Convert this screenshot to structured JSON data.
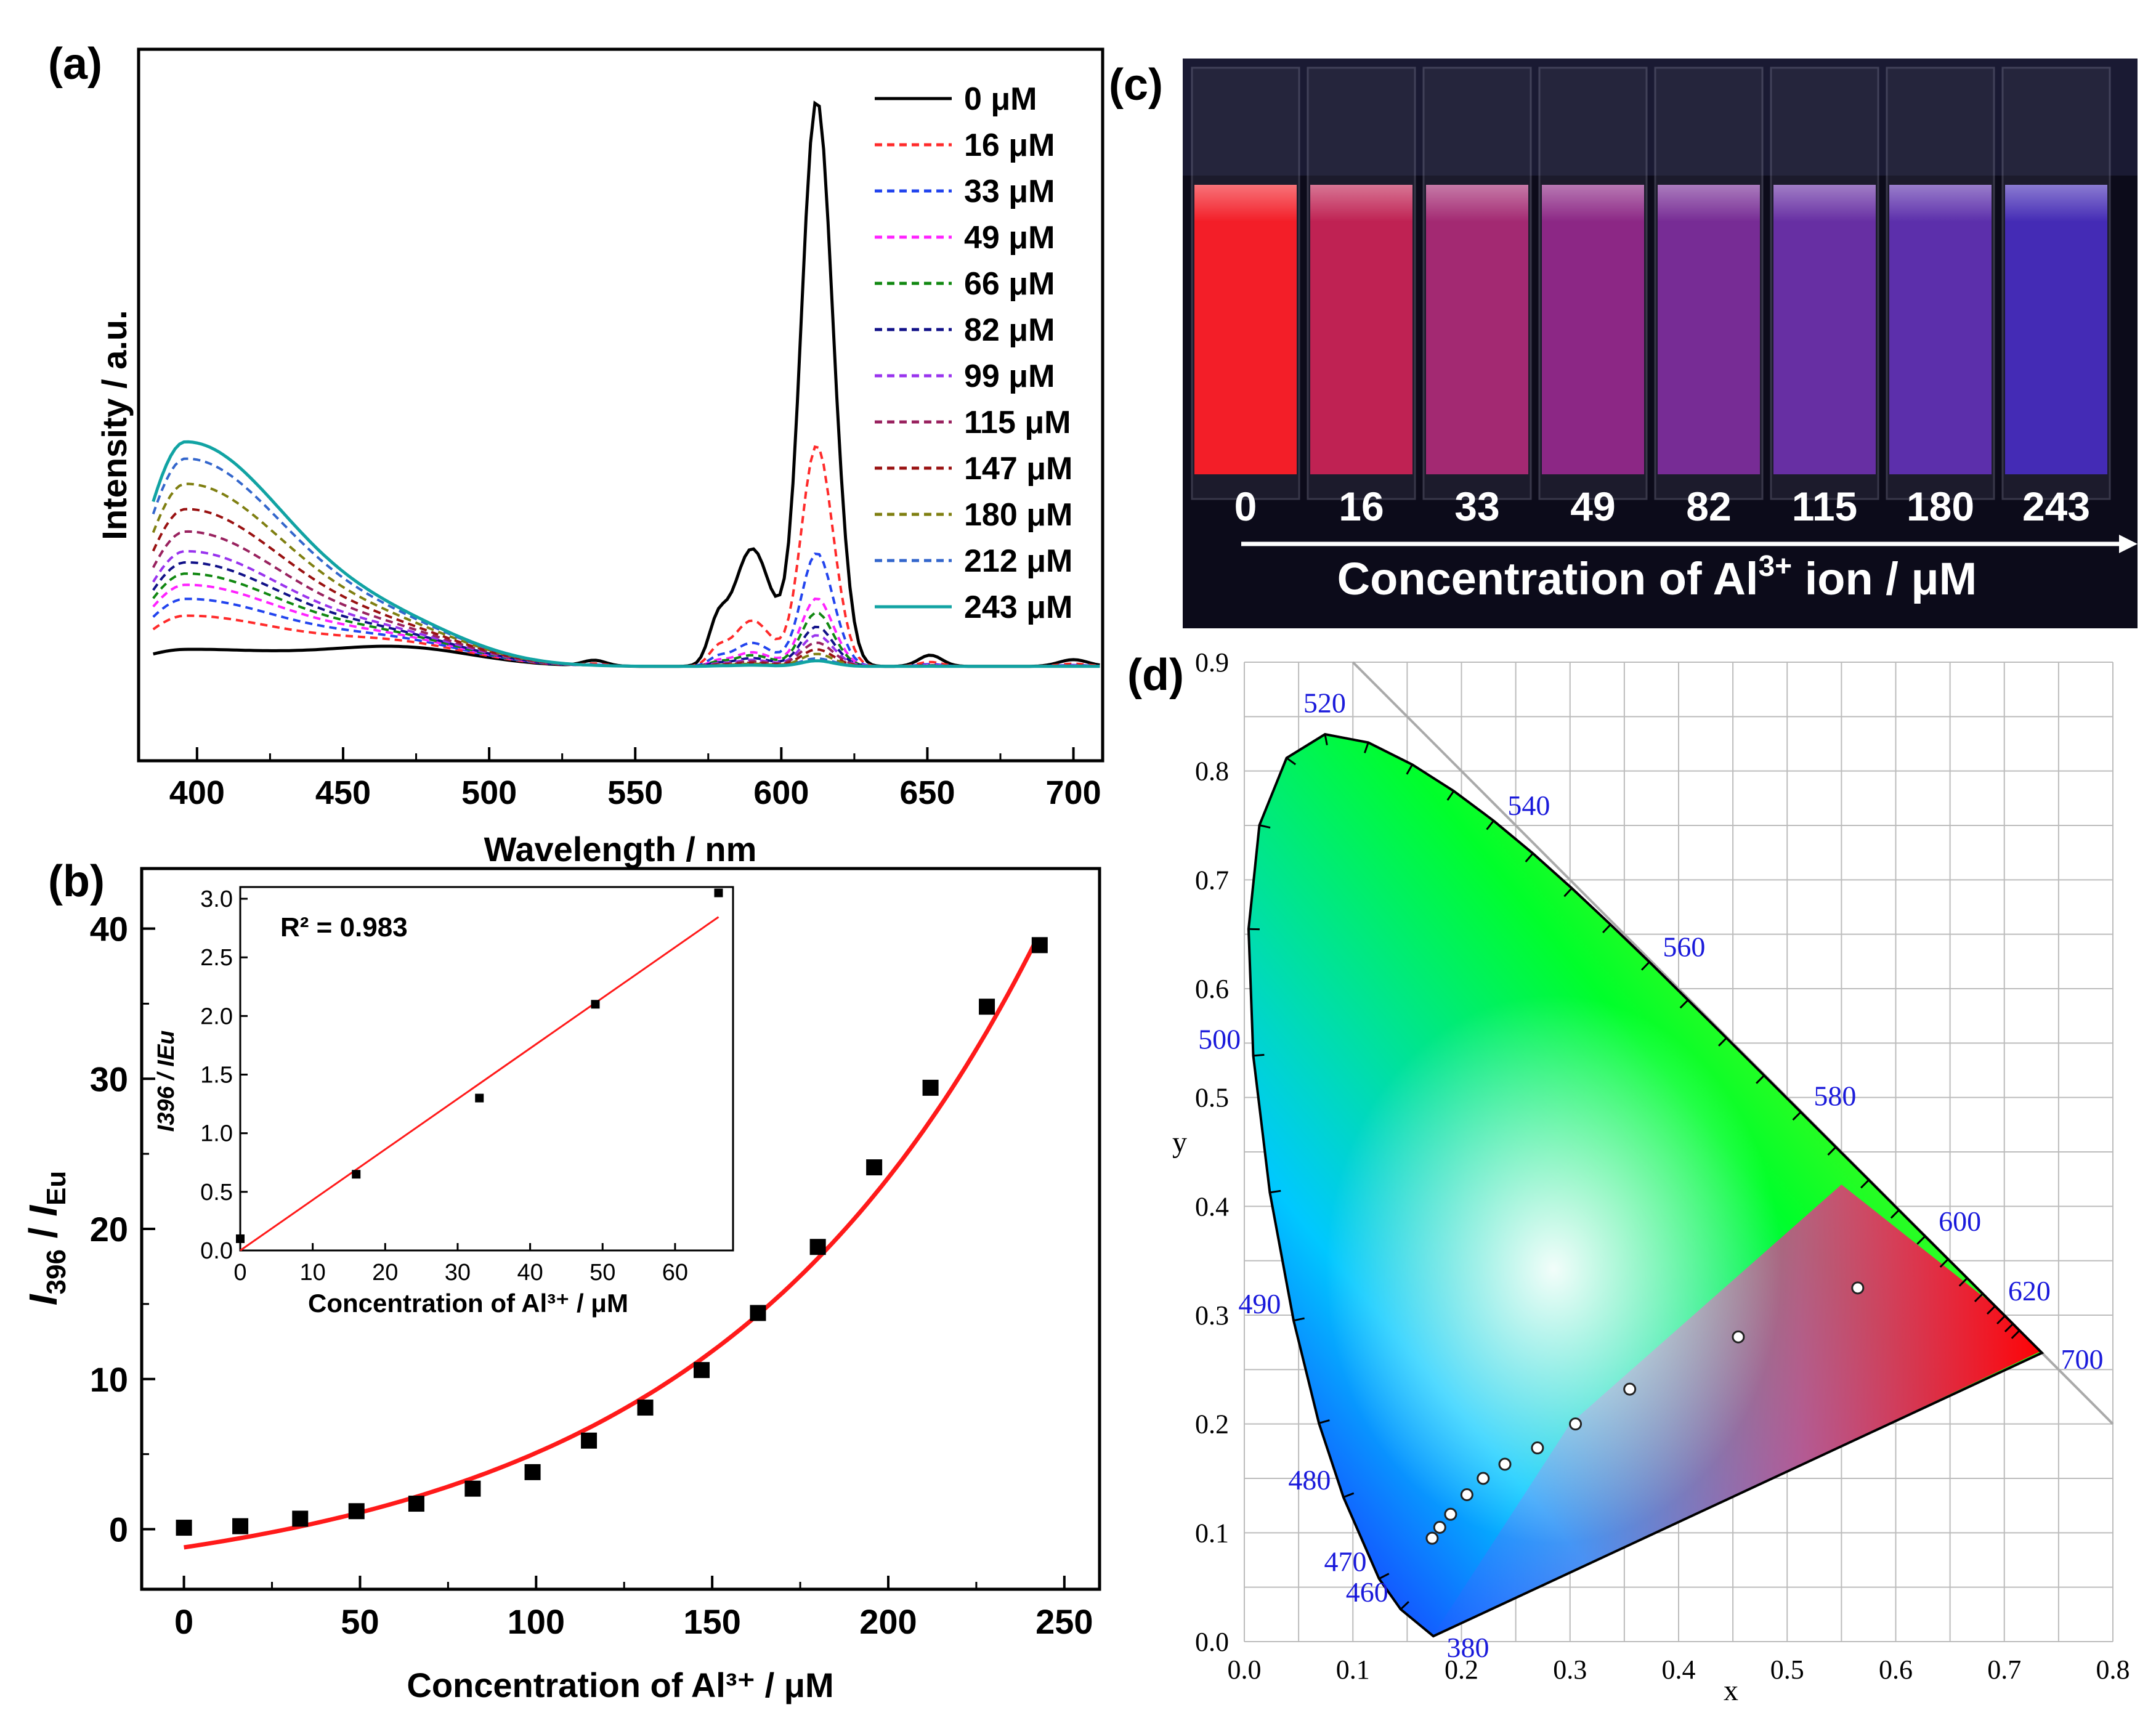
{
  "panel_labels": {
    "a": "(a)",
    "b": "(b)",
    "c": "(c)",
    "d": "(d)"
  },
  "chart_data": [
    {
      "panel": "a",
      "type": "line",
      "title": "",
      "xlabel": "Wavelength / nm",
      "ylabel": "Intensity / a.u.",
      "xlim": [
        380,
        710
      ],
      "ylim": [
        0,
        1.05
      ],
      "xticks": [
        400,
        450,
        500,
        550,
        600,
        650,
        700
      ],
      "legend_position": "top-right",
      "series": [
        {
          "name": "0 μM",
          "color": "#000000",
          "style": "solid",
          "uv_peak": 0.03,
          "eu_peak": 1.0
        },
        {
          "name": "16 μM",
          "color": "#ff2a2a",
          "style": "dashed",
          "uv_peak": 0.09,
          "eu_peak": 0.39
        },
        {
          "name": "33 μM",
          "color": "#2244ee",
          "style": "dashed",
          "uv_peak": 0.12,
          "eu_peak": 0.2
        },
        {
          "name": "49 μM",
          "color": "#ff22ff",
          "style": "dashed",
          "uv_peak": 0.145,
          "eu_peak": 0.12
        },
        {
          "name": "66 μM",
          "color": "#118811",
          "style": "dashed",
          "uv_peak": 0.165,
          "eu_peak": 0.095
        },
        {
          "name": "82 μM",
          "color": "#111188",
          "style": "dashed",
          "uv_peak": 0.185,
          "eu_peak": 0.07
        },
        {
          "name": "99 μM",
          "color": "#9933ee",
          "style": "dashed",
          "uv_peak": 0.205,
          "eu_peak": 0.055
        },
        {
          "name": "115 μM",
          "color": "#99225f",
          "style": "dashed",
          "uv_peak": 0.24,
          "eu_peak": 0.042
        },
        {
          "name": "147 μM",
          "color": "#991111",
          "style": "dashed",
          "uv_peak": 0.28,
          "eu_peak": 0.03
        },
        {
          "name": "180 μM",
          "color": "#7f7f11",
          "style": "dashed",
          "uv_peak": 0.325,
          "eu_peak": 0.022
        },
        {
          "name": "212 μM",
          "color": "#3366cc",
          "style": "dashed",
          "uv_peak": 0.37,
          "eu_peak": 0.014
        },
        {
          "name": "243 μM",
          "color": "#11a3a3",
          "style": "solid",
          "uv_peak": 0.4,
          "eu_peak": 0.01
        }
      ]
    },
    {
      "panel": "b",
      "type": "scatter",
      "title": "",
      "xlabel": "Concentration of Al³⁺ / μM",
      "ylabel": "I396 / IEu",
      "ylabel_main": "I",
      "ylabel_sub1": "396",
      "ylabel_sep": " / ",
      "ylabel_main2": "I",
      "ylabel_sub2": "Eu",
      "xlim": [
        -12,
        260
      ],
      "ylim": [
        -4,
        44
      ],
      "xticks": [
        0,
        50,
        100,
        150,
        200,
        250
      ],
      "yticks": [
        0,
        10,
        20,
        30,
        40
      ],
      "x": [
        0,
        16,
        33,
        49,
        66,
        82,
        99,
        115,
        131,
        147,
        163,
        180,
        196,
        212,
        228,
        243
      ],
      "y": [
        0.1,
        0.2,
        0.7,
        1.2,
        1.7,
        2.7,
        3.8,
        5.9,
        8.1,
        10.6,
        14.4,
        18.8,
        24.1,
        29.4,
        34.8,
        38.9
      ],
      "fit": {
        "type": "exponential",
        "color": "#ff1a1a",
        "a": 3.29,
        "b": 0.01069,
        "c": -4.5
      }
    },
    {
      "panel": "b-inset",
      "type": "scatter",
      "title": "",
      "annotation": "R² = 0.983",
      "xlabel": "Concentration of Al³⁺ /  μM",
      "ylabel": "I396 / IEu",
      "xlim": [
        0,
        68
      ],
      "ylim": [
        0,
        3.1
      ],
      "xticks": [
        0,
        10,
        20,
        30,
        40,
        50,
        60
      ],
      "yticks": [
        0.0,
        0.5,
        1.0,
        1.5,
        2.0,
        2.5,
        3.0
      ],
      "x": [
        0,
        16,
        33,
        49,
        66
      ],
      "y": [
        0.1,
        0.65,
        1.3,
        2.1,
        3.05
      ],
      "fit": {
        "type": "linear",
        "slope": 0.0431,
        "intercept": 0,
        "x_end": 66,
        "color": "#ff1a1a"
      }
    },
    {
      "panel": "d",
      "type": "scatter",
      "title": "",
      "xlabel": "x",
      "ylabel": "y",
      "xlim": [
        0,
        0.8
      ],
      "ylim": [
        0,
        0.9
      ],
      "xticks": [
        0.0,
        0.1,
        0.2,
        0.3,
        0.4,
        0.5,
        0.6,
        0.7,
        0.8
      ],
      "yticks": [
        0.0,
        0.1,
        0.2,
        0.3,
        0.4,
        0.5,
        0.6,
        0.7,
        0.8,
        0.9
      ],
      "wavelength_labels": [
        {
          "text": "380",
          "x": 0.175,
          "y": 0.0
        },
        {
          "text": "460",
          "x": 0.144,
          "y": 0.03
        },
        {
          "text": "470",
          "x": 0.124,
          "y": 0.058
        },
        {
          "text": "480",
          "x": 0.091,
          "y": 0.133
        },
        {
          "text": "490",
          "x": 0.045,
          "y": 0.295
        },
        {
          "text": "500",
          "x": 0.008,
          "y": 0.538
        },
        {
          "text": "520",
          "x": 0.074,
          "y": 0.834
        },
        {
          "text": "540",
          "x": 0.23,
          "y": 0.754
        },
        {
          "text": "560",
          "x": 0.373,
          "y": 0.624
        },
        {
          "text": "580",
          "x": 0.512,
          "y": 0.487
        },
        {
          "text": "600",
          "x": 0.627,
          "y": 0.372
        },
        {
          "text": "620",
          "x": 0.691,
          "y": 0.308
        },
        {
          "text": "700",
          "x": 0.735,
          "y": 0.265
        }
      ],
      "x": [
        0.173,
        0.18,
        0.19,
        0.205,
        0.22,
        0.24,
        0.27,
        0.305,
        0.355,
        0.455,
        0.565
      ],
      "y": [
        0.095,
        0.105,
        0.117,
        0.135,
        0.15,
        0.163,
        0.178,
        0.2,
        0.232,
        0.28,
        0.325
      ]
    }
  ],
  "photo": {
    "concentrations": [
      "0",
      "16",
      "33",
      "49",
      "82",
      "115",
      "180",
      "243"
    ],
    "caption_prefix": "Concentration of Al",
    "caption_sup": "3+",
    "caption_suffix": " ion / μM",
    "vial_colors": [
      "#ff1f28",
      "#e8245e",
      "#c52d85",
      "#a92a9c",
      "#8e31b0",
      "#7a34c2",
      "#6d35cc",
      "#4f30d8"
    ]
  }
}
